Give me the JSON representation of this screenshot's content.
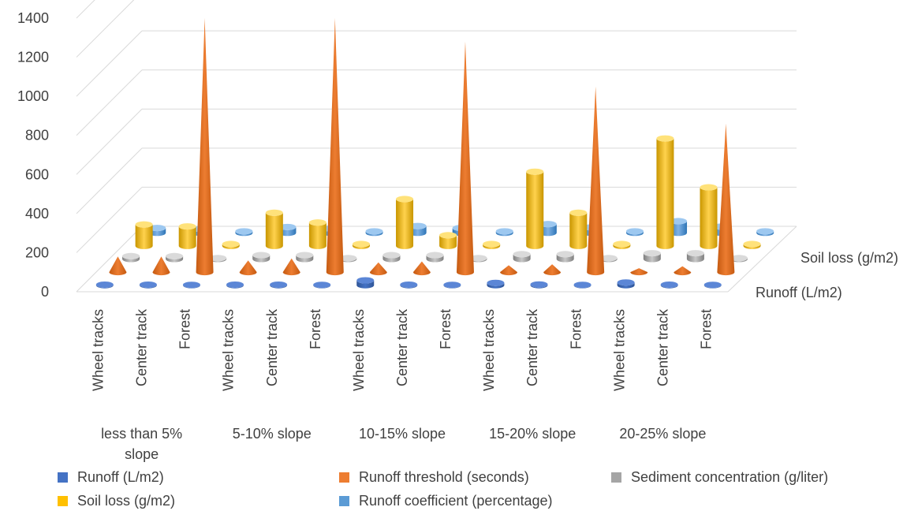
{
  "chart_data": {
    "type": "bar",
    "title": "",
    "groups": [
      "less than 5% slope",
      "5-10% slope",
      "10-15% slope",
      "15-20% slope",
      "20-25% slope"
    ],
    "subcategories": [
      "Wheel tracks",
      "Center track",
      "Forest"
    ],
    "depth_axis_labels": [
      "Runoff (L/m2)",
      "Soil loss (g/m2)"
    ],
    "y_ticks": [
      "0",
      "200",
      "400",
      "600",
      "800",
      "1000",
      "1200",
      "1400"
    ],
    "ylim": [
      0,
      1400
    ],
    "grid": true,
    "legend_position": "bottom",
    "series": [
      {
        "name": "Runoff (L/m2)",
        "color": "#4472C4",
        "values": [
          3,
          3,
          2,
          3,
          3,
          2,
          25,
          3,
          2,
          12,
          4,
          2,
          14,
          3,
          2
        ]
      },
      {
        "name": "Runoff threshold (seconds)",
        "color": "#ED7D31",
        "values": [
          80,
          80,
          1300,
          60,
          70,
          1300,
          50,
          55,
          1180,
          35,
          40,
          950,
          20,
          30,
          760
        ]
      },
      {
        "name": "Sediment concentration (g/liter)",
        "color": "#A5A5A5",
        "values": [
          15,
          15,
          5,
          20,
          20,
          5,
          20,
          20,
          5,
          25,
          25,
          5,
          30,
          30,
          5
        ]
      },
      {
        "name": "Soil loss (g/m2)",
        "color": "#FFC000",
        "values": [
          110,
          100,
          10,
          170,
          120,
          10,
          240,
          55,
          10,
          380,
          170,
          10,
          550,
          300,
          10
        ]
      },
      {
        "name": "Runoff coefficient (percentage)",
        "color": "#5B9BD5",
        "values": [
          25,
          20,
          8,
          30,
          22,
          8,
          35,
          25,
          8,
          45,
          28,
          8,
          60,
          32,
          8
        ]
      }
    ]
  },
  "legend_layout_rows": [
    [
      "Runoff (L/m2)",
      "Runoff threshold (seconds)",
      "Sediment concentration (g/liter)"
    ],
    [
      "Soil loss (g/m2)",
      "Runoff coefficient (percentage)"
    ]
  ]
}
